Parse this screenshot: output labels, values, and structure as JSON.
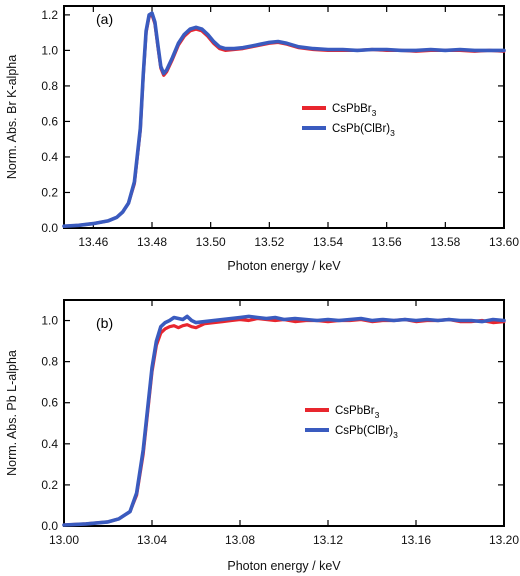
{
  "chart_data": [
    {
      "type": "line",
      "panel_label": "(a)",
      "xlabel": "Photon energy / keV",
      "ylabel": "Norm. Abs. Br K-alpha",
      "xlim": [
        13.45,
        13.6
      ],
      "ylim": [
        0.0,
        1.25
      ],
      "xticks": [
        13.46,
        13.48,
        13.5,
        13.52,
        13.54,
        13.56,
        13.58,
        13.6
      ],
      "xtick_labels": [
        "13.46",
        "13.48",
        "13.50",
        "13.52",
        "13.54",
        "13.56",
        "13.58",
        "13.60"
      ],
      "yticks": [
        0.0,
        0.2,
        0.4,
        0.6,
        0.8,
        1.0,
        1.2
      ],
      "ytick_labels": [
        "0.0",
        "0.2",
        "0.4",
        "0.6",
        "0.8",
        "1.0",
        "1.2"
      ],
      "grid": false,
      "legend_position": "right",
      "series": [
        {
          "name": "CsPbBr",
          "name_sub": "3",
          "color": "#e8262e",
          "x": [
            13.45,
            13.455,
            13.46,
            13.465,
            13.468,
            13.47,
            13.472,
            13.474,
            13.476,
            13.477,
            13.478,
            13.479,
            13.48,
            13.481,
            13.482,
            13.483,
            13.484,
            13.485,
            13.487,
            13.489,
            13.491,
            13.493,
            13.495,
            13.497,
            13.499,
            13.501,
            13.503,
            13.505,
            13.508,
            13.511,
            13.514,
            13.517,
            13.52,
            13.523,
            13.526,
            13.53,
            13.535,
            13.54,
            13.545,
            13.55,
            13.555,
            13.56,
            13.565,
            13.57,
            13.575,
            13.58,
            13.585,
            13.59,
            13.595,
            13.6
          ],
          "y": [
            0.01,
            0.015,
            0.025,
            0.04,
            0.06,
            0.09,
            0.14,
            0.25,
            0.55,
            0.85,
            1.1,
            1.19,
            1.2,
            1.15,
            1.02,
            0.9,
            0.86,
            0.88,
            0.95,
            1.03,
            1.08,
            1.11,
            1.12,
            1.11,
            1.08,
            1.04,
            1.01,
            1.0,
            1.005,
            1.01,
            1.02,
            1.03,
            1.04,
            1.045,
            1.035,
            1.015,
            1.005,
            1.0,
            1.0,
            1.0,
            1.005,
            1.0,
            1.0,
            0.995,
            1.0,
            1.0,
            1.0,
            0.995,
            1.0,
            0.995
          ]
        },
        {
          "name": "CsPb(ClBr)",
          "name_sub": "3",
          "color": "#3a5bbf",
          "x": [
            13.45,
            13.455,
            13.46,
            13.465,
            13.468,
            13.47,
            13.472,
            13.474,
            13.476,
            13.477,
            13.478,
            13.479,
            13.48,
            13.481,
            13.482,
            13.483,
            13.484,
            13.485,
            13.487,
            13.489,
            13.491,
            13.493,
            13.495,
            13.497,
            13.499,
            13.501,
            13.503,
            13.505,
            13.508,
            13.511,
            13.514,
            13.517,
            13.52,
            13.523,
            13.526,
            13.53,
            13.535,
            13.54,
            13.545,
            13.55,
            13.555,
            13.56,
            13.565,
            13.57,
            13.575,
            13.58,
            13.585,
            13.59,
            13.595,
            13.6
          ],
          "y": [
            0.01,
            0.015,
            0.025,
            0.04,
            0.06,
            0.09,
            0.14,
            0.26,
            0.56,
            0.86,
            1.11,
            1.2,
            1.21,
            1.16,
            1.03,
            0.91,
            0.87,
            0.89,
            0.96,
            1.04,
            1.09,
            1.12,
            1.13,
            1.12,
            1.09,
            1.05,
            1.02,
            1.01,
            1.01,
            1.015,
            1.025,
            1.035,
            1.045,
            1.05,
            1.04,
            1.02,
            1.01,
            1.005,
            1.005,
            1.0,
            1.005,
            1.005,
            1.0,
            1.0,
            1.005,
            1.0,
            1.005,
            1.0,
            1.0,
            1.0
          ]
        }
      ]
    },
    {
      "type": "line",
      "panel_label": "(b)",
      "xlabel": "Photon energy / keV",
      "ylabel": "Norm. Abs. Pb L-alpha",
      "xlim": [
        13.0,
        13.2
      ],
      "ylim": [
        0.0,
        1.1
      ],
      "xticks": [
        13.0,
        13.04,
        13.08,
        13.12,
        13.16,
        13.2
      ],
      "xtick_labels": [
        "13.00",
        "13.04",
        "13.08",
        "13.12",
        "13.16",
        "13.20"
      ],
      "yticks": [
        0.0,
        0.2,
        0.4,
        0.6,
        0.8,
        1.0
      ],
      "ytick_labels": [
        "0.0",
        "0.2",
        "0.4",
        "0.6",
        "0.8",
        "1.0"
      ],
      "grid": false,
      "legend_position": "right",
      "series": [
        {
          "name": "CsPbBr",
          "name_sub": "3",
          "color": "#e8262e",
          "x": [
            13.0,
            13.01,
            13.02,
            13.025,
            13.03,
            13.033,
            13.036,
            13.038,
            13.04,
            13.042,
            13.044,
            13.046,
            13.048,
            13.05,
            13.052,
            13.054,
            13.056,
            13.058,
            13.06,
            13.064,
            13.068,
            13.072,
            13.076,
            13.08,
            13.084,
            13.088,
            13.092,
            13.096,
            13.1,
            13.105,
            13.11,
            13.115,
            13.12,
            13.125,
            13.13,
            13.135,
            13.14,
            13.145,
            13.15,
            13.155,
            13.16,
            13.165,
            13.17,
            13.175,
            13.18,
            13.185,
            13.19,
            13.195,
            13.2
          ],
          "y": [
            0.005,
            0.01,
            0.02,
            0.035,
            0.07,
            0.15,
            0.35,
            0.55,
            0.75,
            0.88,
            0.94,
            0.96,
            0.97,
            0.975,
            0.965,
            0.975,
            0.98,
            0.97,
            0.965,
            0.985,
            0.99,
            0.995,
            1.0,
            1.005,
            1.0,
            1.01,
            1.005,
            1.0,
            1.005,
            0.995,
            1.0,
            1.0,
            0.995,
            1.0,
            1.0,
            1.005,
            0.995,
            1.0,
            1.0,
            1.005,
            0.995,
            1.0,
            1.0,
            1.005,
            0.995,
            0.995,
            1.0,
            0.99,
            0.995
          ]
        },
        {
          "name": "CsPb(ClBr)",
          "name_sub": "3",
          "color": "#3a5bbf",
          "x": [
            13.0,
            13.01,
            13.02,
            13.025,
            13.03,
            13.033,
            13.036,
            13.038,
            13.04,
            13.042,
            13.044,
            13.046,
            13.048,
            13.05,
            13.052,
            13.054,
            13.056,
            13.058,
            13.06,
            13.064,
            13.068,
            13.072,
            13.076,
            13.08,
            13.084,
            13.088,
            13.092,
            13.096,
            13.1,
            13.105,
            13.11,
            13.115,
            13.12,
            13.125,
            13.13,
            13.135,
            13.14,
            13.145,
            13.15,
            13.155,
            13.16,
            13.165,
            13.17,
            13.175,
            13.18,
            13.185,
            13.19,
            13.195,
            13.2
          ],
          "y": [
            0.005,
            0.01,
            0.02,
            0.035,
            0.07,
            0.16,
            0.37,
            0.57,
            0.77,
            0.9,
            0.97,
            0.99,
            1.0,
            1.015,
            1.01,
            1.005,
            1.02,
            1.0,
            0.99,
            0.995,
            1.0,
            1.005,
            1.01,
            1.015,
            1.02,
            1.015,
            1.01,
            1.015,
            1.005,
            1.01,
            1.005,
            1.0,
            1.005,
            1.0,
            1.005,
            1.01,
            1.0,
            1.005,
            1.0,
            1.005,
            1.0,
            1.005,
            1.0,
            1.005,
            1.0,
            1.0,
            0.995,
            1.005,
            1.0
          ]
        }
      ]
    }
  ]
}
